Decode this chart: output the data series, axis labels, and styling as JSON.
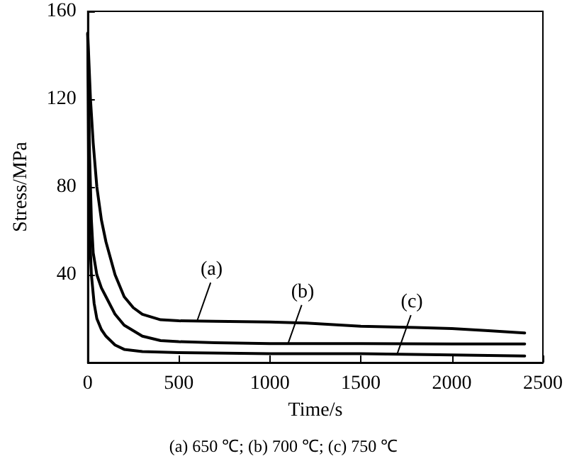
{
  "chart_data": {
    "type": "line",
    "xlabel": "Time/s",
    "ylabel": "Stress/MPa",
    "xlim": [
      0,
      2500
    ],
    "ylim": [
      0,
      160
    ],
    "xticks": [
      0,
      500,
      1000,
      1500,
      2000,
      2500
    ],
    "yticks": [
      {
        "value": 0,
        "label": null
      },
      40,
      80,
      120,
      160
    ],
    "grid": false,
    "marker": "none",
    "line_style": "solid",
    "series": [
      {
        "color": "#000000",
        "x": [
          0,
          15,
          30,
          50,
          75,
          100,
          150,
          200,
          250,
          300,
          400,
          500,
          700,
          1000,
          1200,
          1500,
          1800,
          2000,
          2200,
          2400
        ],
        "values": [
          150,
          120,
          100,
          80,
          65,
          55,
          40,
          30,
          25,
          22,
          19.5,
          19,
          18.8,
          18.5,
          18,
          16.5,
          16,
          15.5,
          14.5,
          13.5
        ]
      },
      {
        "color": "#000000",
        "x": [
          0,
          10,
          20,
          30,
          50,
          75,
          100,
          150,
          200,
          300,
          400,
          500,
          700,
          1000,
          1500,
          2000,
          2400
        ],
        "values": [
          150,
          95,
          65,
          50,
          40,
          34,
          30,
          22,
          17,
          12,
          10,
          9.5,
          9,
          8.6,
          8.6,
          8.5,
          8.5
        ]
      },
      {
        "color": "#000000",
        "x": [
          0,
          5,
          10,
          20,
          35,
          50,
          75,
          100,
          150,
          200,
          300,
          500,
          1000,
          1500,
          2000,
          2400
        ],
        "values": [
          150,
          90,
          60,
          40,
          27,
          20,
          15,
          12,
          8,
          6,
          5,
          4.5,
          4,
          4,
          3.5,
          3
        ]
      }
    ],
    "annotations": [
      {
        "text": "(a)",
        "x": 600,
        "y": 18.8
      },
      {
        "text": "(b)",
        "x": 1100,
        "y": 8.6
      },
      {
        "text": "(c)",
        "x": 1700,
        "y": 4
      },
      "(a) 650 ℃; (b) 700 ℃; (c) 750 ℃"
    ]
  }
}
